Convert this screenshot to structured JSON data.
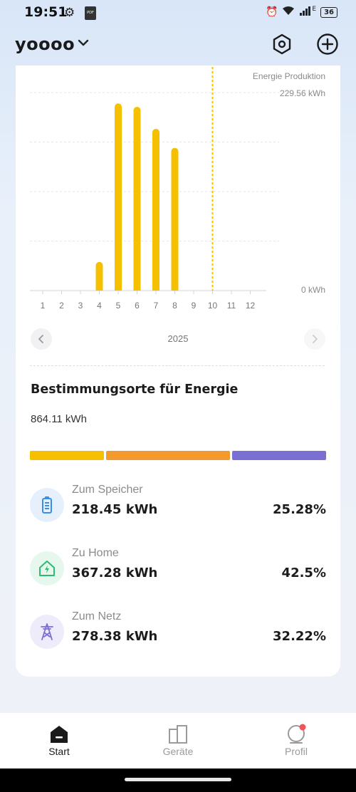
{
  "status_bar": {
    "time": "19:51",
    "battery": "36",
    "network": "E"
  },
  "header": {
    "home_name": "yoooo"
  },
  "chart_data": {
    "type": "bar",
    "legend": "Energie Produktion",
    "max_label": "229.56 kWh",
    "min_label": "0 kWh",
    "categories": [
      "1",
      "2",
      "3",
      "4",
      "5",
      "6",
      "7",
      "8",
      "9",
      "10",
      "11",
      "12"
    ],
    "values": [
      0,
      0,
      0,
      33.2,
      217.0,
      213.0,
      187.5,
      165.5,
      0,
      0,
      0,
      0
    ],
    "ylim": [
      0,
      229.56
    ],
    "current_marker": "10",
    "color": "#f5c000"
  },
  "year_nav": {
    "year": "2025"
  },
  "destinations": {
    "title": "Bestimmungsorte für Energie",
    "total": "864.11 kWh",
    "items": [
      {
        "label": "Zum Speicher",
        "value": "218.45 kWh",
        "percent": "25.28%",
        "share": 25.28,
        "color": "#f5c000",
        "icon": "battery-icon",
        "icon_bg": "#e6f0fc",
        "icon_color": "#3a8ee8"
      },
      {
        "label": "Zu Home",
        "value": "367.28 kWh",
        "percent": "42.5%",
        "share": 42.5,
        "color": "#f29a2e",
        "icon": "home-bolt-icon",
        "icon_bg": "#e6f7ee",
        "icon_color": "#2dbb73"
      },
      {
        "label": "Zum Netz",
        "value": "278.38 kWh",
        "percent": "32.22%",
        "share": 32.22,
        "color": "#7b6fd6",
        "icon": "grid-tower-icon",
        "icon_bg": "#eeecfa",
        "icon_color": "#7b6fd6"
      }
    ]
  },
  "bottom_nav": {
    "tabs": [
      {
        "label": "Start",
        "active": true
      },
      {
        "label": "Geräte",
        "active": false
      },
      {
        "label": "Profil",
        "active": false
      }
    ]
  }
}
